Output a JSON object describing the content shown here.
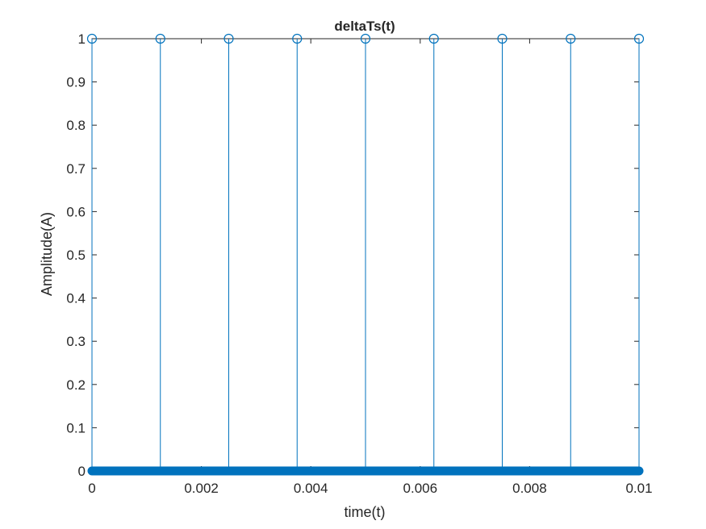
{
  "chart_data": {
    "type": "stem",
    "title": "deltaTs(t)",
    "xlabel": "time(t)",
    "ylabel": "Amplitude(A)",
    "xlim": [
      0,
      0.01
    ],
    "ylim": [
      0,
      1
    ],
    "xticks": [
      0,
      0.002,
      0.004,
      0.006,
      0.008,
      0.01
    ],
    "xtick_labels": [
      "0",
      "0.002",
      "0.004",
      "0.006",
      "0.008",
      "0.01"
    ],
    "yticks": [
      0,
      0.1,
      0.2,
      0.3,
      0.4,
      0.5,
      0.6,
      0.7,
      0.8,
      0.9,
      1
    ],
    "ytick_labels": [
      "0",
      "0.1",
      "0.2",
      "0.3",
      "0.4",
      "0.5",
      "0.6",
      "0.7",
      "0.8",
      "0.9",
      "1"
    ],
    "impulses": {
      "x": [
        0,
        0.00125,
        0.0025,
        0.00375,
        0.005,
        0.00625,
        0.0075,
        0.00875,
        0.01
      ],
      "y": [
        1,
        1,
        1,
        1,
        1,
        1,
        1,
        1,
        1
      ]
    },
    "zero_samples": {
      "x_start": 0,
      "x_end": 0.01,
      "y": 0
    },
    "series_color": "#0072BD",
    "grid": false,
    "box": true
  }
}
